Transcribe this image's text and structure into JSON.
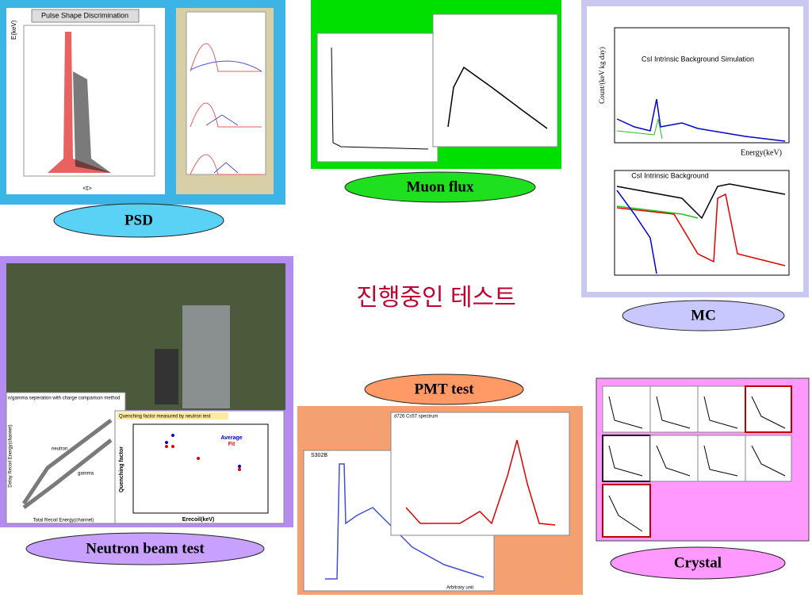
{
  "title": "진행중인 테스트",
  "panels": {
    "psd": {
      "label": "PSD",
      "plot_title": "Pulse Shape Discrimination",
      "x_label": "<t>",
      "y_label": "E(keV)"
    },
    "muon": {
      "label": "Muon flux"
    },
    "mc": {
      "label": "MC",
      "plot1_title": "CsI Intrinsic Background Simulation",
      "plot2_title": "CsI Intrinsic Background",
      "x_label": "Energy(keV)",
      "y_label": "Count/(keV kg day)"
    },
    "neutron": {
      "label": "Neutron beam test",
      "plot1_title": "n/gamma seperation with charge comparison method",
      "plot1_x_label": "Total Recoil Energy(channel)",
      "plot1_y_label": "Delay Recoil Energy(channel)",
      "neutron": "neutron",
      "gamma": "gamma",
      "plot2_title": "Quenching factor measured by neutron test",
      "plot2_x_label": "Erecoil(keV)",
      "plot2_y_label": "Quenching factor",
      "legend_average": "Average",
      "legend_fit": "Fit"
    },
    "pmt": {
      "label": "PMT test",
      "plot1_title": "S302B",
      "plot1_x_label": "Arbitrary unit",
      "plot2_title": "d726 Cs57 spectrum"
    },
    "crystal": {
      "label": "Crystal"
    }
  }
}
